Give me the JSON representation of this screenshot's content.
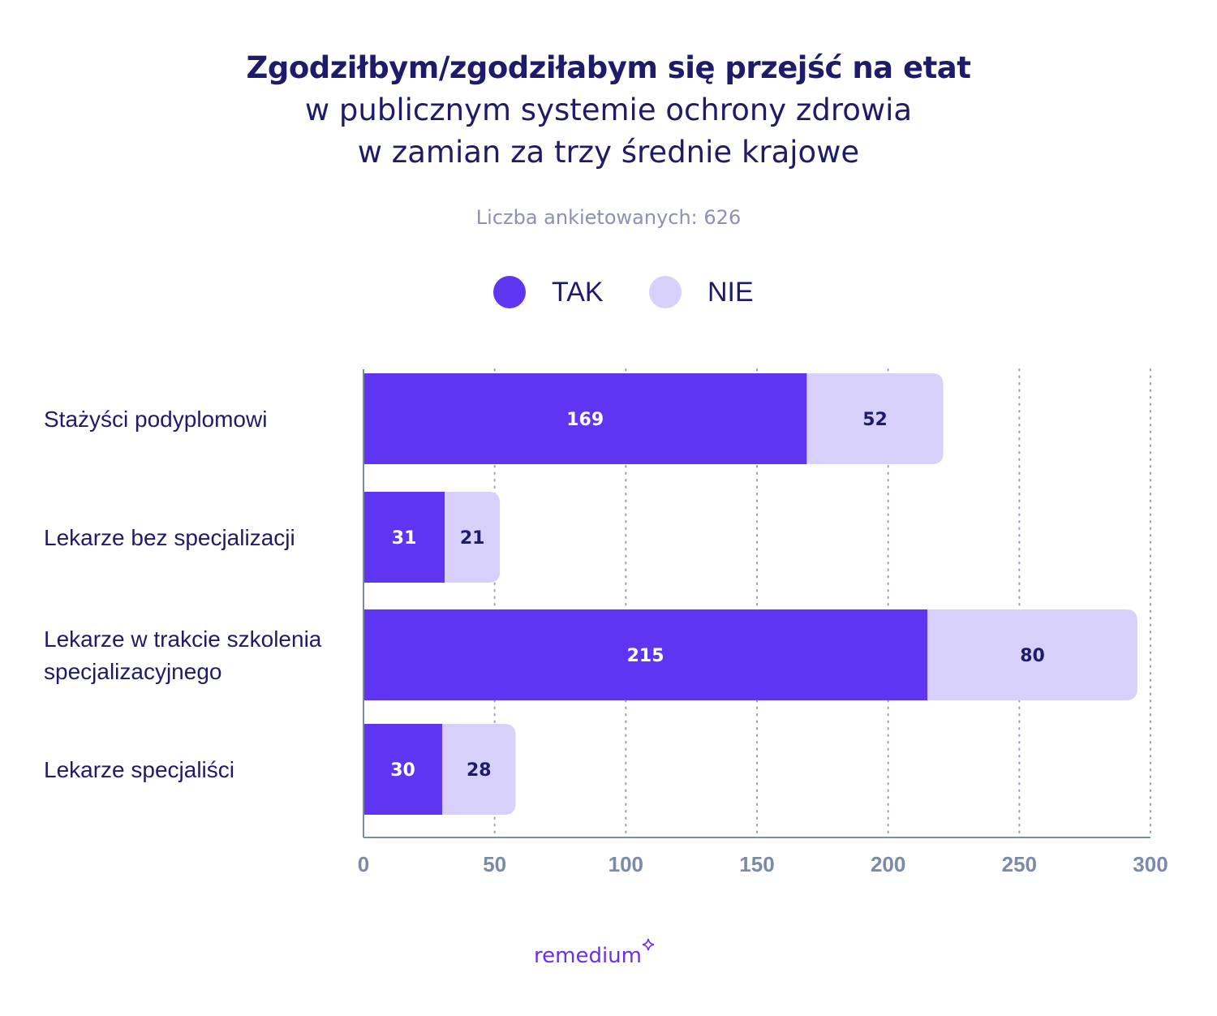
{
  "chart_data": {
    "type": "bar",
    "orientation": "horizontal",
    "stacked": true,
    "title_line1": "Zgodziłbym/zgodziłabym się przejść na etat",
    "title_line2": "w publicznym systemie ochrony zdrowia",
    "title_line3": "w zamian za trzy średnie krajowe",
    "subtitle": "Liczba ankietowanych: 626",
    "categories": [
      [
        "Stażyści podyplomowi"
      ],
      [
        "Lekarze bez specjalizacji"
      ],
      [
        "Lekarze w trakcie szkolenia",
        "specjalizacyjnego"
      ],
      [
        "Lekarze specjaliści"
      ]
    ],
    "series": [
      {
        "name": "TAK",
        "color": "#5e35f0",
        "label_color": "#ffffff",
        "values": [
          169,
          31,
          215,
          30
        ]
      },
      {
        "name": "NIE",
        "color": "#d6d0fb",
        "label_color": "#1e1b6b",
        "values": [
          52,
          21,
          80,
          28
        ]
      }
    ],
    "xlim": [
      0,
      300
    ],
    "xticks": [
      "0",
      "50",
      "100",
      "150",
      "200",
      "250",
      "300"
    ],
    "grid": "dotted vertical",
    "legend": "top-center"
  },
  "brand": {
    "name": "remedium",
    "color": "#6a2ff0"
  }
}
